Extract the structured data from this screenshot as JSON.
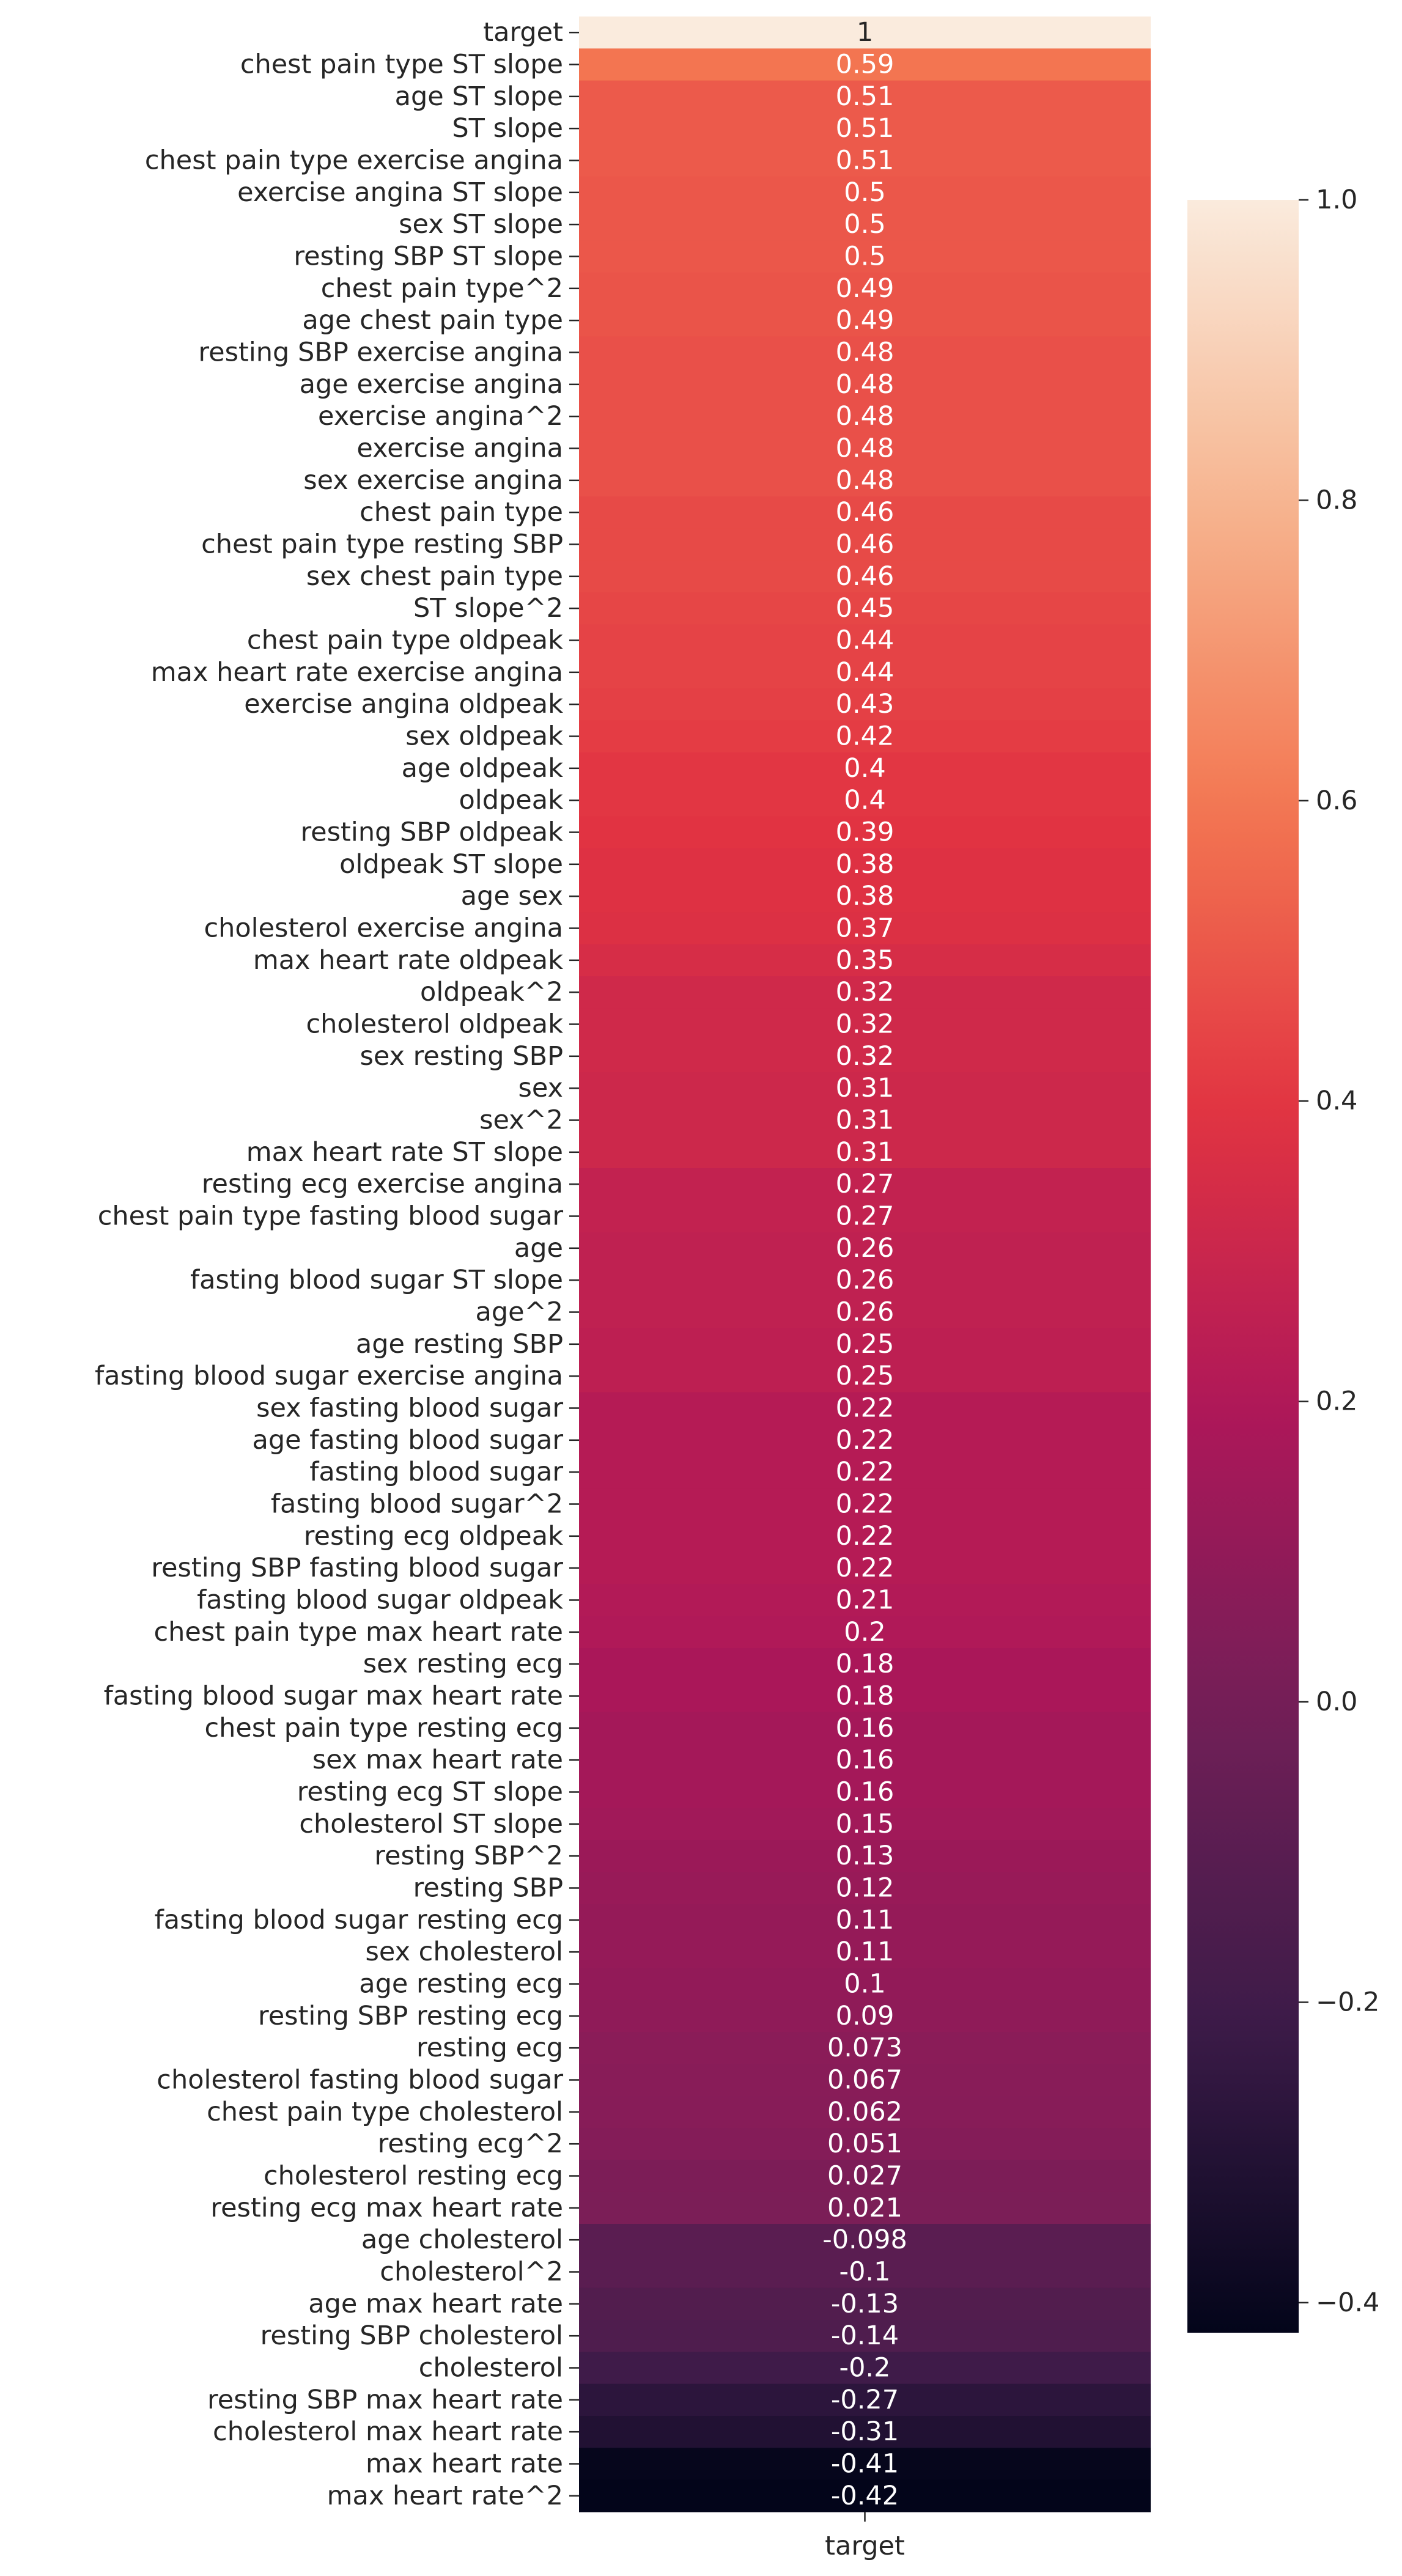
{
  "chart_data": {
    "type": "heatmap",
    "title": "",
    "xlabel": "",
    "ylabel": "",
    "columns": [
      "target"
    ],
    "rows": [
      {
        "label": "target",
        "value": 1,
        "text": "1"
      },
      {
        "label": "chest pain type ST slope",
        "value": 0.59,
        "text": "0.59"
      },
      {
        "label": "age ST slope",
        "value": 0.51,
        "text": "0.51"
      },
      {
        "label": "ST slope",
        "value": 0.51,
        "text": "0.51"
      },
      {
        "label": "chest pain type exercise angina",
        "value": 0.51,
        "text": "0.51"
      },
      {
        "label": "exercise angina ST slope",
        "value": 0.5,
        "text": "0.5"
      },
      {
        "label": "sex ST slope",
        "value": 0.5,
        "text": "0.5"
      },
      {
        "label": "resting SBP ST slope",
        "value": 0.5,
        "text": "0.5"
      },
      {
        "label": "chest pain type^2",
        "value": 0.49,
        "text": "0.49"
      },
      {
        "label": "age chest pain type",
        "value": 0.49,
        "text": "0.49"
      },
      {
        "label": "resting SBP exercise angina",
        "value": 0.48,
        "text": "0.48"
      },
      {
        "label": "age exercise angina",
        "value": 0.48,
        "text": "0.48"
      },
      {
        "label": "exercise angina^2",
        "value": 0.48,
        "text": "0.48"
      },
      {
        "label": "exercise angina",
        "value": 0.48,
        "text": "0.48"
      },
      {
        "label": "sex exercise angina",
        "value": 0.48,
        "text": "0.48"
      },
      {
        "label": "chest pain type",
        "value": 0.46,
        "text": "0.46"
      },
      {
        "label": "chest pain type resting SBP",
        "value": 0.46,
        "text": "0.46"
      },
      {
        "label": "sex chest pain type",
        "value": 0.46,
        "text": "0.46"
      },
      {
        "label": "ST slope^2",
        "value": 0.45,
        "text": "0.45"
      },
      {
        "label": "chest pain type oldpeak",
        "value": 0.44,
        "text": "0.44"
      },
      {
        "label": "max heart rate exercise angina",
        "value": 0.44,
        "text": "0.44"
      },
      {
        "label": "exercise angina oldpeak",
        "value": 0.43,
        "text": "0.43"
      },
      {
        "label": "sex oldpeak",
        "value": 0.42,
        "text": "0.42"
      },
      {
        "label": "age oldpeak",
        "value": 0.4,
        "text": "0.4"
      },
      {
        "label": "oldpeak",
        "value": 0.4,
        "text": "0.4"
      },
      {
        "label": "resting SBP oldpeak",
        "value": 0.39,
        "text": "0.39"
      },
      {
        "label": "oldpeak ST slope",
        "value": 0.38,
        "text": "0.38"
      },
      {
        "label": "age sex",
        "value": 0.38,
        "text": "0.38"
      },
      {
        "label": "cholesterol exercise angina",
        "value": 0.37,
        "text": "0.37"
      },
      {
        "label": "max heart rate oldpeak",
        "value": 0.35,
        "text": "0.35"
      },
      {
        "label": "oldpeak^2",
        "value": 0.32,
        "text": "0.32"
      },
      {
        "label": "cholesterol oldpeak",
        "value": 0.32,
        "text": "0.32"
      },
      {
        "label": "sex resting SBP",
        "value": 0.32,
        "text": "0.32"
      },
      {
        "label": "sex",
        "value": 0.31,
        "text": "0.31"
      },
      {
        "label": "sex^2",
        "value": 0.31,
        "text": "0.31"
      },
      {
        "label": "max heart rate ST slope",
        "value": 0.31,
        "text": "0.31"
      },
      {
        "label": "resting ecg exercise angina",
        "value": 0.27,
        "text": "0.27"
      },
      {
        "label": "chest pain type fasting blood sugar",
        "value": 0.27,
        "text": "0.27"
      },
      {
        "label": "age",
        "value": 0.26,
        "text": "0.26"
      },
      {
        "label": "fasting blood sugar ST slope",
        "value": 0.26,
        "text": "0.26"
      },
      {
        "label": "age^2",
        "value": 0.26,
        "text": "0.26"
      },
      {
        "label": "age resting SBP",
        "value": 0.25,
        "text": "0.25"
      },
      {
        "label": "fasting blood sugar exercise angina",
        "value": 0.25,
        "text": "0.25"
      },
      {
        "label": "sex fasting blood sugar",
        "value": 0.22,
        "text": "0.22"
      },
      {
        "label": "age fasting blood sugar",
        "value": 0.22,
        "text": "0.22"
      },
      {
        "label": "fasting blood sugar",
        "value": 0.22,
        "text": "0.22"
      },
      {
        "label": "fasting blood sugar^2",
        "value": 0.22,
        "text": "0.22"
      },
      {
        "label": "resting ecg oldpeak",
        "value": 0.22,
        "text": "0.22"
      },
      {
        "label": "resting SBP fasting blood sugar",
        "value": 0.22,
        "text": "0.22"
      },
      {
        "label": "fasting blood sugar oldpeak",
        "value": 0.21,
        "text": "0.21"
      },
      {
        "label": "chest pain type max heart rate",
        "value": 0.2,
        "text": "0.2"
      },
      {
        "label": "sex resting ecg",
        "value": 0.18,
        "text": "0.18"
      },
      {
        "label": "fasting blood sugar max heart rate",
        "value": 0.18,
        "text": "0.18"
      },
      {
        "label": "chest pain type resting ecg",
        "value": 0.16,
        "text": "0.16"
      },
      {
        "label": "sex max heart rate",
        "value": 0.16,
        "text": "0.16"
      },
      {
        "label": "resting ecg ST slope",
        "value": 0.16,
        "text": "0.16"
      },
      {
        "label": "cholesterol ST slope",
        "value": 0.15,
        "text": "0.15"
      },
      {
        "label": "resting SBP^2",
        "value": 0.13,
        "text": "0.13"
      },
      {
        "label": "resting SBP",
        "value": 0.12,
        "text": "0.12"
      },
      {
        "label": "fasting blood sugar resting ecg",
        "value": 0.11,
        "text": "0.11"
      },
      {
        "label": "sex cholesterol",
        "value": 0.11,
        "text": "0.11"
      },
      {
        "label": "age resting ecg",
        "value": 0.1,
        "text": "0.1"
      },
      {
        "label": "resting SBP resting ecg",
        "value": 0.09,
        "text": "0.09"
      },
      {
        "label": "resting ecg",
        "value": 0.073,
        "text": "0.073"
      },
      {
        "label": "cholesterol fasting blood sugar",
        "value": 0.067,
        "text": "0.067"
      },
      {
        "label": "chest pain type cholesterol",
        "value": 0.062,
        "text": "0.062"
      },
      {
        "label": "resting ecg^2",
        "value": 0.051,
        "text": "0.051"
      },
      {
        "label": "cholesterol resting ecg",
        "value": 0.027,
        "text": "0.027"
      },
      {
        "label": "resting ecg max heart rate",
        "value": 0.021,
        "text": "0.021"
      },
      {
        "label": "age cholesterol",
        "value": -0.098,
        "text": "-0.098"
      },
      {
        "label": "cholesterol^2",
        "value": -0.1,
        "text": "-0.1"
      },
      {
        "label": "age max heart rate",
        "value": -0.13,
        "text": "-0.13"
      },
      {
        "label": "resting SBP cholesterol",
        "value": -0.14,
        "text": "-0.14"
      },
      {
        "label": "cholesterol",
        "value": -0.2,
        "text": "-0.2"
      },
      {
        "label": "resting SBP max heart rate",
        "value": -0.27,
        "text": "-0.27"
      },
      {
        "label": "cholesterol max heart rate",
        "value": -0.31,
        "text": "-0.31"
      },
      {
        "label": "max heart rate",
        "value": -0.41,
        "text": "-0.41"
      },
      {
        "label": "max heart rate^2",
        "value": -0.42,
        "text": "-0.42"
      }
    ],
    "colorbar": {
      "vmin": -0.42,
      "vmax": 1,
      "ticks": [
        {
          "value": 1.0,
          "text": "1.0"
        },
        {
          "value": 0.8,
          "text": "0.8"
        },
        {
          "value": 0.6,
          "text": "0.6"
        },
        {
          "value": 0.4,
          "text": "0.4"
        },
        {
          "value": 0.2,
          "text": "0.2"
        },
        {
          "value": 0.0,
          "text": "0.0"
        },
        {
          "value": -0.2,
          "text": "−0.2"
        },
        {
          "value": -0.4,
          "text": "−0.4"
        }
      ],
      "colormap": "rocket",
      "stops": [
        "#03051a",
        "#3b1b48",
        "#701f57",
        "#ad1759",
        "#e13342",
        "#f37651",
        "#f6b48f",
        "#faebdd"
      ]
    },
    "grid": false,
    "legend": "colorbar-right"
  }
}
